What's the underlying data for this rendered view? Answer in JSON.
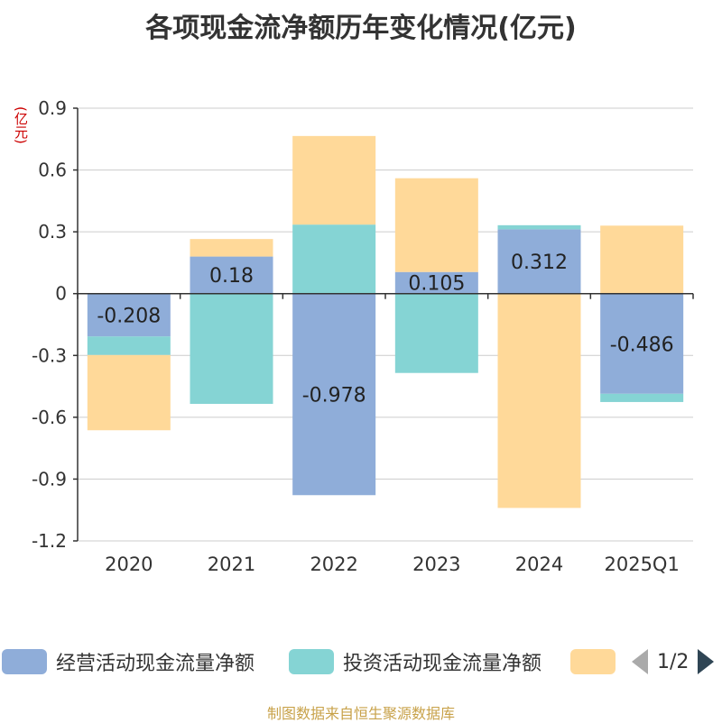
{
  "chart_data": {
    "type": "bar",
    "stacked": true,
    "title": "各项现金流净额历年变化情况(亿元)",
    "ylabel": "(亿元)",
    "categories": [
      "2020",
      "2021",
      "2022",
      "2023",
      "2024",
      "2025Q1"
    ],
    "ylim": [
      -1.2,
      0.9
    ],
    "yticks": [
      "0.9",
      "0.6",
      "0.3",
      "0",
      "-0.3",
      "-0.6",
      "-0.9",
      "-1.2"
    ],
    "ytick_values": [
      0.9,
      0.6,
      0.3,
      0,
      -0.3,
      -0.6,
      -0.9,
      -1.2
    ],
    "series": [
      {
        "name": "经营活动现金流量净额",
        "color": "#8fadd9",
        "values": [
          -0.208,
          0.18,
          -0.978,
          0.105,
          0.312,
          -0.486
        ],
        "labels": [
          "-0.208",
          "0.18",
          "-0.978",
          "0.105",
          "0.312",
          "-0.486"
        ]
      },
      {
        "name": "投资活动现金流量净额",
        "color": "#85d4d4",
        "values": [
          -0.09,
          -0.535,
          0.335,
          -0.385,
          0.02,
          -0.04
        ]
      },
      {
        "name": "",
        "color": "#ffd999",
        "values": [
          -0.365,
          0.085,
          0.43,
          0.455,
          -1.04,
          0.33
        ]
      }
    ]
  },
  "legend": {
    "page": "1/2"
  },
  "source": "制图数据来自恒生聚源数据库"
}
